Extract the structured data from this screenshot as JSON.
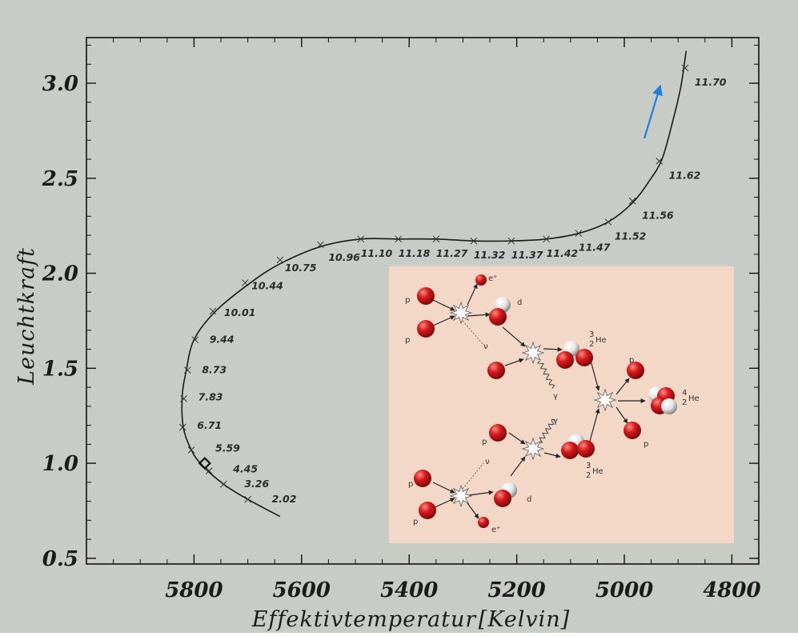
{
  "chart_data": {
    "type": "line",
    "title": "",
    "xlabel": "Effektivtemperatur",
    "xunit": "[Kelvin]",
    "ylabel": "Leuchtkraft",
    "xlim": [
      6000,
      4750
    ],
    "ylim": [
      0.47,
      3.24
    ],
    "x_reversed": true,
    "x_ticks": [
      5800,
      5600,
      5400,
      5200,
      5000,
      4800
    ],
    "x_tick_labels": [
      "5800",
      "5600",
      "5400",
      "5200",
      "5000",
      "4800"
    ],
    "y_ticks": [
      0.5,
      1.0,
      1.5,
      2.0,
      2.5,
      3.0
    ],
    "y_tick_labels": [
      "0.5",
      "1.0",
      "1.5",
      "2.0",
      "2.5",
      "3.0"
    ],
    "grid": false,
    "series": [
      {
        "points": [
          {
            "x": 5640,
            "y": 0.72
          },
          {
            "x": 5700,
            "y": 0.81
          },
          {
            "x": 5745,
            "y": 0.89
          },
          {
            "x": 5785,
            "y": 0.99
          },
          {
            "x": 5805,
            "y": 1.07
          },
          {
            "x": 5820,
            "y": 1.19
          },
          {
            "x": 5822,
            "y": 1.35
          },
          {
            "x": 5815,
            "y": 1.48
          },
          {
            "x": 5800,
            "y": 1.65
          },
          {
            "x": 5760,
            "y": 1.8
          },
          {
            "x": 5695,
            "y": 1.95
          },
          {
            "x": 5640,
            "y": 2.05
          },
          {
            "x": 5565,
            "y": 2.14
          },
          {
            "x": 5490,
            "y": 2.18
          },
          {
            "x": 5420,
            "y": 2.18
          },
          {
            "x": 5350,
            "y": 2.18
          },
          {
            "x": 5280,
            "y": 2.17
          },
          {
            "x": 5210,
            "y": 2.17
          },
          {
            "x": 5145,
            "y": 2.18
          },
          {
            "x": 5085,
            "y": 2.21
          },
          {
            "x": 5030,
            "y": 2.27
          },
          {
            "x": 4985,
            "y": 2.37
          },
          {
            "x": 4955,
            "y": 2.48
          },
          {
            "x": 4930,
            "y": 2.6
          },
          {
            "x": 4910,
            "y": 2.8
          },
          {
            "x": 4895,
            "y": 2.98
          },
          {
            "x": 4885,
            "y": 3.17
          }
        ]
      }
    ],
    "age_markers": [
      {
        "label": "2.02",
        "x": 5700,
        "y": 0.81
      },
      {
        "label": "3.26",
        "x": 5745,
        "y": 0.89
      },
      {
        "label": "4.45",
        "x": 5772,
        "y": 0.96
      },
      {
        "label": "5.59",
        "x": 5805,
        "y": 1.07
      },
      {
        "label": "6.71",
        "x": 5821,
        "y": 1.19
      },
      {
        "label": "7.83",
        "x": 5819,
        "y": 1.34
      },
      {
        "label": "8.73",
        "x": 5812,
        "y": 1.49
      },
      {
        "label": "9.44",
        "x": 5798,
        "y": 1.65
      },
      {
        "label": "10.01",
        "x": 5765,
        "y": 1.8
      },
      {
        "label": "10.44",
        "x": 5705,
        "y": 1.95
      },
      {
        "label": "10.75",
        "x": 5640,
        "y": 2.07
      },
      {
        "label": "10.96",
        "x": 5565,
        "y": 2.15
      },
      {
        "label": "11.10",
        "x": 5490,
        "y": 2.18
      },
      {
        "label": "11.18",
        "x": 5420,
        "y": 2.18
      },
      {
        "label": "11.27",
        "x": 5350,
        "y": 2.18
      },
      {
        "label": "11.32",
        "x": 5280,
        "y": 2.17
      },
      {
        "label": "11.37",
        "x": 5210,
        "y": 2.17
      },
      {
        "label": "11.42",
        "x": 5145,
        "y": 2.18
      },
      {
        "label": "11.47",
        "x": 5085,
        "y": 2.21
      },
      {
        "label": "11.52",
        "x": 5030,
        "y": 2.27
      },
      {
        "label": "11.56",
        "x": 4985,
        "y": 2.38
      },
      {
        "label": "11.62",
        "x": 4935,
        "y": 2.59
      },
      {
        "label": "11.70",
        "x": 4887,
        "y": 3.08
      }
    ],
    "current_position": {
      "x": 5780,
      "y": 1.0,
      "marker": "diamond"
    },
    "arrow_color": "#1e7fe0",
    "curve_color": "#1a1a1a"
  },
  "inset": {
    "background": "#f3d8c8",
    "particle_colors": {
      "proton": "#d7191c",
      "neutron": "#e6e6e6"
    },
    "labels": {
      "p": "p",
      "e_plus": "e⁺",
      "d": "d",
      "nu": "ν",
      "gamma": "γ",
      "he3_mass": "3",
      "he3_charge": "2",
      "he3_symbol": "He",
      "he4_mass": "4",
      "he4_charge": "2",
      "he4_symbol": "He"
    }
  }
}
